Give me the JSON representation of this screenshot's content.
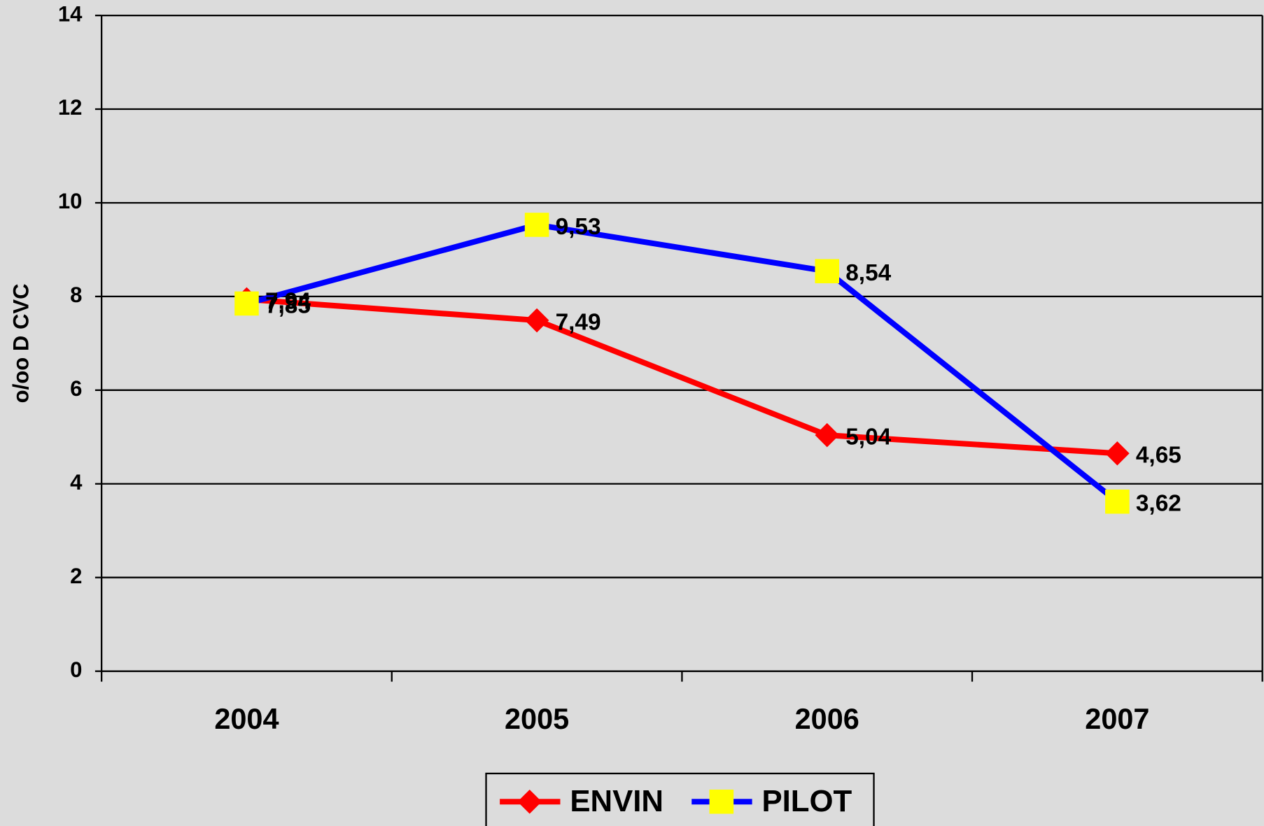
{
  "chart_data": {
    "type": "line",
    "y_label": "o/oo D CVC",
    "categories": [
      "2004",
      "2005",
      "2006",
      "2007"
    ],
    "series": [
      {
        "name": "ENVIN",
        "color": "#ff0000",
        "marker": "diamond",
        "marker_color": "#ff0000",
        "values": [
          7.94,
          7.49,
          5.04,
          4.65
        ],
        "value_labels": [
          "7,94",
          "7,49",
          "5,04",
          "4,65"
        ]
      },
      {
        "name": "PILOT",
        "color": "#0000ff",
        "marker": "square",
        "marker_color": "#ffff00",
        "values": [
          7.85,
          9.53,
          8.54,
          3.62
        ],
        "value_labels": [
          "7,85",
          "9,53",
          "8,54",
          "3,62"
        ]
      }
    ],
    "ylim": [
      0,
      14
    ],
    "yticks": [
      0,
      2,
      4,
      6,
      8,
      10,
      12,
      14
    ],
    "grid": true,
    "legend": "bottom"
  }
}
